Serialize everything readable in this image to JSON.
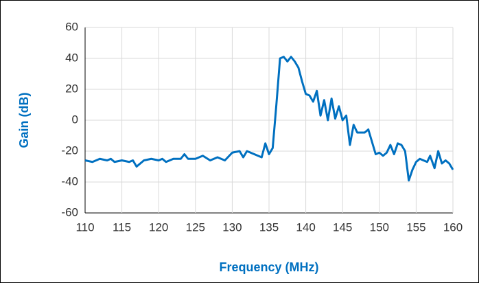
{
  "chart_data": {
    "type": "line",
    "x_label": "Frequency (MHz)",
    "y_label": "Gain (dB)",
    "x": [
      110,
      111,
      112,
      113,
      113.5,
      114,
      115,
      116,
      116.5,
      117,
      118,
      119,
      120,
      120.5,
      121,
      122,
      123,
      123.5,
      124,
      125,
      126,
      127,
      128,
      129,
      130,
      131,
      131.5,
      132,
      133,
      134,
      134.5,
      135,
      135.5,
      136,
      136.5,
      137,
      137.5,
      138,
      138.5,
      139,
      139.5,
      140,
      140.5,
      141,
      141.5,
      142,
      142.5,
      143,
      143.5,
      144,
      144.5,
      145,
      145.5,
      146,
      146.5,
      147,
      148,
      148.5,
      149,
      149.5,
      150,
      150.5,
      151,
      151.5,
      152,
      152.5,
      153,
      153.5,
      154,
      154.5,
      155,
      155.5,
      156,
      156.5,
      156.9,
      157.5,
      158,
      158.5,
      159,
      159.5,
      160
    ],
    "series": [
      {
        "name": "Gain",
        "color": "#0070c0",
        "values": [
          -26,
          -27,
          -25,
          -26,
          -25,
          -27,
          -26,
          -27,
          -26,
          -30,
          -26,
          -25,
          -26,
          -25,
          -27,
          -25,
          -25,
          -22,
          -25,
          -25,
          -23,
          -26,
          -24,
          -26,
          -21,
          -20,
          -24,
          -20,
          -22,
          -24,
          -15,
          -22,
          -18,
          10,
          40,
          41,
          38,
          41,
          38,
          34,
          25,
          17,
          16,
          12,
          19,
          3,
          13,
          0,
          14,
          1,
          9,
          0,
          3,
          -16,
          -3,
          -8,
          -8,
          -6,
          -14,
          -22,
          -21,
          -23,
          -21,
          -16,
          -22,
          -15,
          -16,
          -20,
          -39,
          -32,
          -27,
          -25,
          -26,
          -27,
          -23,
          -31,
          -20,
          -28,
          -26,
          -28,
          -32
        ]
      }
    ],
    "xlim": [
      110,
      160
    ],
    "ylim": [
      -60,
      60
    ],
    "xticks": [
      110,
      115,
      120,
      125,
      130,
      135,
      140,
      145,
      150,
      155,
      160
    ],
    "yticks": [
      -60,
      -40,
      -20,
      0,
      20,
      40,
      60
    ],
    "grid": true
  }
}
